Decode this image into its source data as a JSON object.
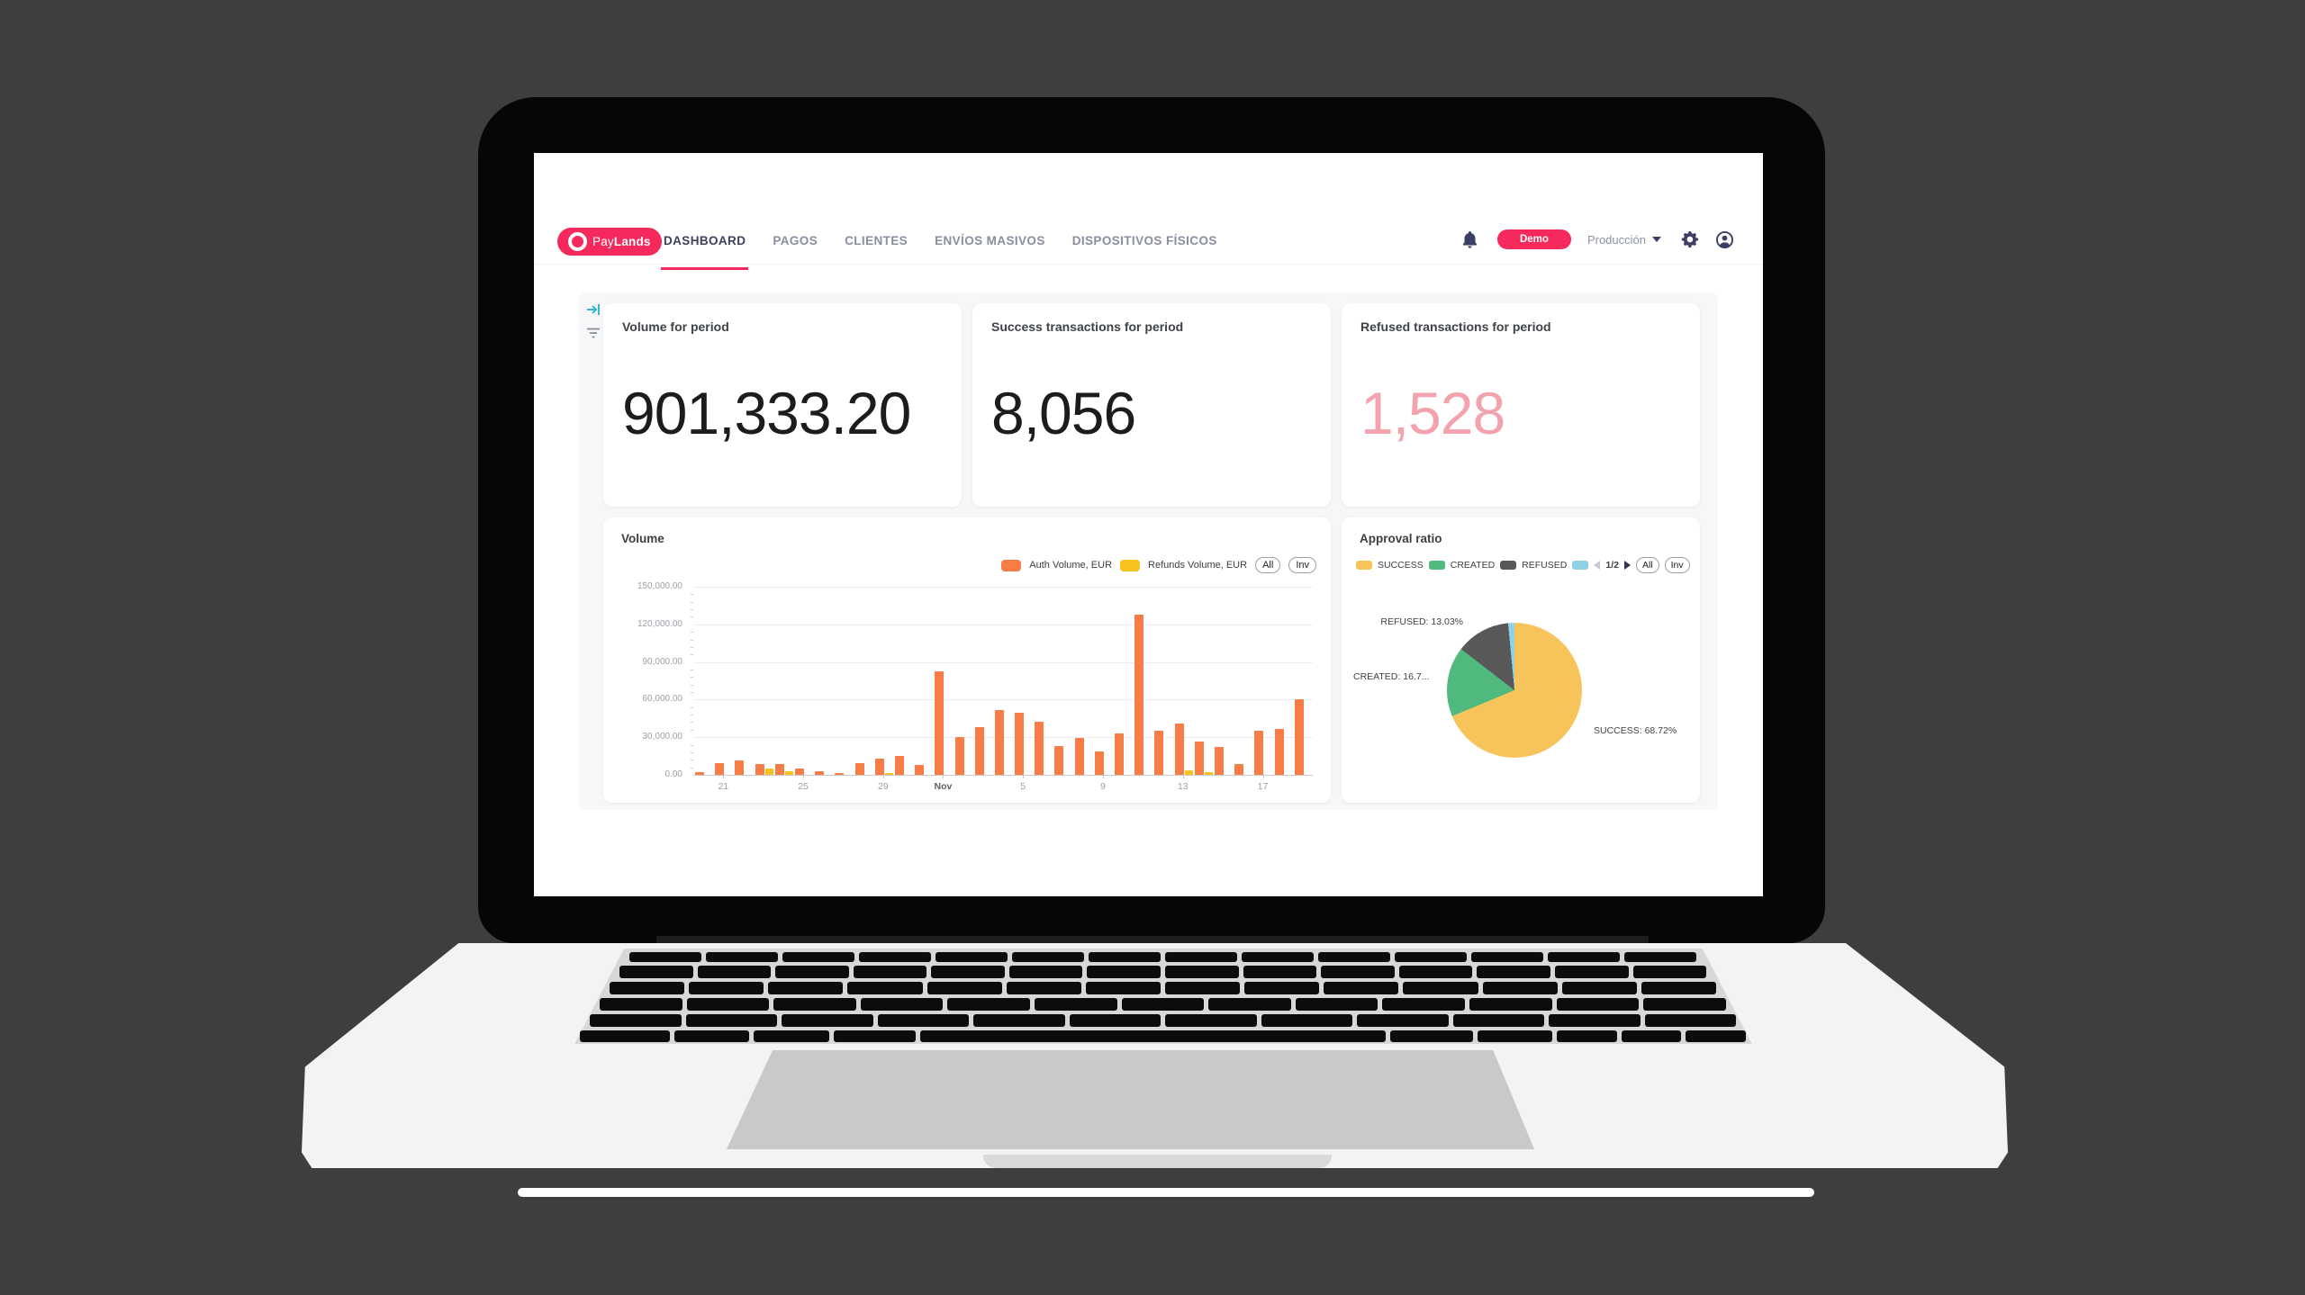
{
  "colors": {
    "accent_pink": "#F6295C",
    "refused_pink": "#F2A3AE",
    "auth_orange": "#F77C46",
    "refunds_yellow": "#F8C21E",
    "pie_yellow": "#F6C45A",
    "pie_green": "#50B97E",
    "pie_gray": "#585858",
    "pie_blue": "#8FD2E8",
    "icon_indigo": "#3A3F63"
  },
  "nav": {
    "brand_pay": "Pay",
    "brand_lands": "Lands",
    "items": [
      {
        "label": "DASHBOARD",
        "active": true
      },
      {
        "label": "PAGOS",
        "active": false
      },
      {
        "label": "CLIENTES",
        "active": false
      },
      {
        "label": "ENVÍOS MASIVOS",
        "active": false
      },
      {
        "label": "DISPOSITIVOS FÍSICOS",
        "active": false
      }
    ],
    "demo_button": "Demo",
    "environment": "Producción"
  },
  "stats": [
    {
      "title": "Volume for period",
      "value": "901,333.20",
      "value_color": "#1B1C1E"
    },
    {
      "title": "Success transactions for period",
      "value": "8,056",
      "value_color": "#1B1C1E"
    },
    {
      "title": "Refused transactions for period",
      "value": "1,528",
      "value_color": "#F2A3AE"
    }
  ],
  "chart_data": [
    {
      "type": "bar",
      "title": "Volume",
      "legend": [
        {
          "label": "Auth Volume, EUR",
          "color": "#F77C46"
        },
        {
          "label": "Refunds Volume, EUR",
          "color": "#F8C21E"
        }
      ],
      "buttons": [
        "All",
        "Inv"
      ],
      "ylim": [
        0,
        150000
      ],
      "y_tick_labels": [
        "0.00",
        "30,000.00",
        "60,000.00",
        "90,000.00",
        "120,000.00",
        "150,000.00"
      ],
      "x_tick_labels": [
        "21",
        "25",
        "29",
        "Nov",
        "5",
        "9",
        "13",
        "17"
      ],
      "x_tick_indices": [
        1,
        5,
        9,
        12,
        16,
        20,
        24,
        28
      ],
      "n_points": 31,
      "series": [
        {
          "name": "Auth Volume, EUR",
          "color": "#F77C46",
          "values": [
            2500,
            9500,
            11500,
            8300,
            8300,
            4800,
            2900,
            1400,
            9300,
            13100,
            14800,
            7600,
            82900,
            30200,
            38100,
            51900,
            49500,
            42400,
            23300,
            29300,
            18800,
            32900,
            128100,
            35000,
            41200,
            26700,
            22100,
            8300,
            35000,
            36900,
            60300
          ]
        },
        {
          "name": "Refunds Volume, EUR",
          "color": "#F8C21E",
          "values": [
            0,
            0,
            0,
            4800,
            3100,
            0,
            0,
            0,
            0,
            1200,
            0,
            0,
            0,
            0,
            0,
            0,
            0,
            0,
            0,
            0,
            0,
            0,
            0,
            0,
            3600,
            2400,
            0,
            0,
            0,
            0,
            0
          ]
        }
      ],
      "grid": true,
      "legend_position": "top-right"
    },
    {
      "type": "pie",
      "title": "Approval ratio",
      "legend": [
        {
          "label": "SUCCESS",
          "color": "#F6C45A"
        },
        {
          "label": "CREATED",
          "color": "#50B97E"
        },
        {
          "label": "REFUSED",
          "color": "#585858"
        },
        {
          "label": "",
          "color": "#8FD2E8"
        }
      ],
      "pagination": "1/2",
      "buttons": [
        "All",
        "Inv"
      ],
      "slices": [
        {
          "label": "SUCCESS",
          "pct": 68.72,
          "color": "#F6C45A"
        },
        {
          "label": "CREATED",
          "pct": 16.74,
          "color": "#50B97E"
        },
        {
          "label": "REFUSED",
          "pct": 13.03,
          "color": "#585858"
        },
        {
          "label": "",
          "pct": 1.51,
          "color": "#8FD2E8"
        }
      ],
      "callouts": {
        "refused": "REFUSED: 13.03%",
        "created": "CREATED: 16.7...",
        "success": "SUCCESS: 68.72%"
      },
      "legend_position": "top-left"
    }
  ]
}
